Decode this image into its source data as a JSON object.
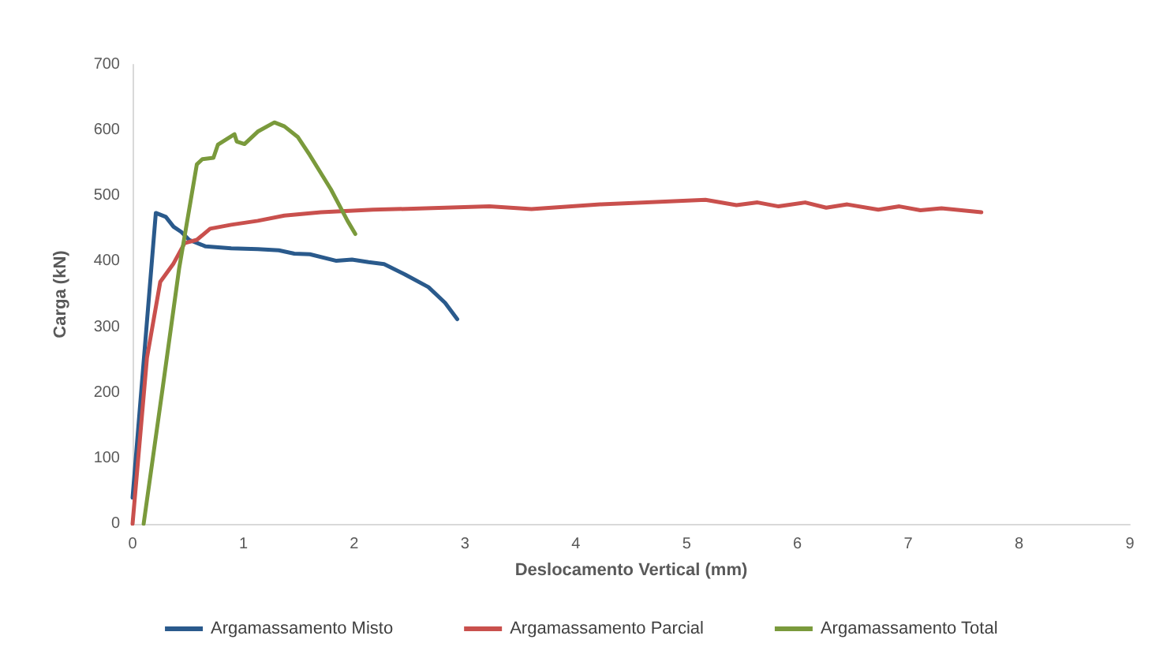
{
  "chart_data": {
    "type": "line",
    "xlabel": "Deslocamento Vertical (mm)",
    "ylabel": "Carga (kN)",
    "xlim": [
      0,
      9
    ],
    "xticks": [
      0,
      1,
      2,
      3,
      4,
      5,
      6,
      7,
      8,
      9
    ],
    "ylim": [
      0,
      700
    ],
    "yticks": [
      0,
      100,
      200,
      300,
      400,
      500,
      600,
      700
    ],
    "grid": false,
    "legend": "bottom",
    "marker": "none",
    "line_style": "solid",
    "series": [
      {
        "name": "Argamassamento Misto",
        "color": "#2a5a8c",
        "x": [
          0,
          0.21,
          0.3,
          0.37,
          0.44,
          0.51,
          0.66,
          0.89,
          1.13,
          1.32,
          1.46,
          1.6,
          1.84,
          1.98,
          2.13,
          2.27,
          2.46,
          2.67,
          2.82,
          2.93
        ],
        "values": [
          40,
          474,
          468,
          453,
          445,
          433,
          423,
          420,
          419,
          417,
          412,
          411,
          401,
          403,
          399,
          396,
          380,
          361,
          337,
          312
        ]
      },
      {
        "name": "Argamassamento Parcial",
        "color": "#c9504d",
        "x": [
          0,
          0.13,
          0.25,
          0.37,
          0.47,
          0.58,
          0.7,
          0.89,
          1.13,
          1.37,
          1.7,
          2.17,
          2.65,
          3.22,
          3.6,
          4.22,
          5.17,
          5.45,
          5.64,
          5.83,
          6.07,
          6.26,
          6.45,
          6.73,
          6.92,
          7.11,
          7.3,
          7.66
        ],
        "values": [
          0,
          253,
          369,
          397,
          428,
          433,
          450,
          456,
          462,
          470,
          475,
          479,
          481,
          484,
          480,
          487,
          494,
          486,
          490,
          484,
          490,
          482,
          487,
          479,
          484,
          478,
          481,
          475
        ]
      },
      {
        "name": "Argamassamento Total",
        "color": "#7a9a3c",
        "x": [
          0.1,
          0.27,
          0.42,
          0.58,
          0.63,
          0.73,
          0.77,
          0.92,
          0.94,
          1.01,
          1.13,
          1.28,
          1.37,
          1.49,
          1.6,
          1.79,
          1.94,
          2.01
        ],
        "values": [
          0,
          205,
          389,
          548,
          556,
          558,
          578,
          594,
          583,
          579,
          598,
          612,
          606,
          590,
          562,
          510,
          462,
          442
        ]
      }
    ]
  }
}
